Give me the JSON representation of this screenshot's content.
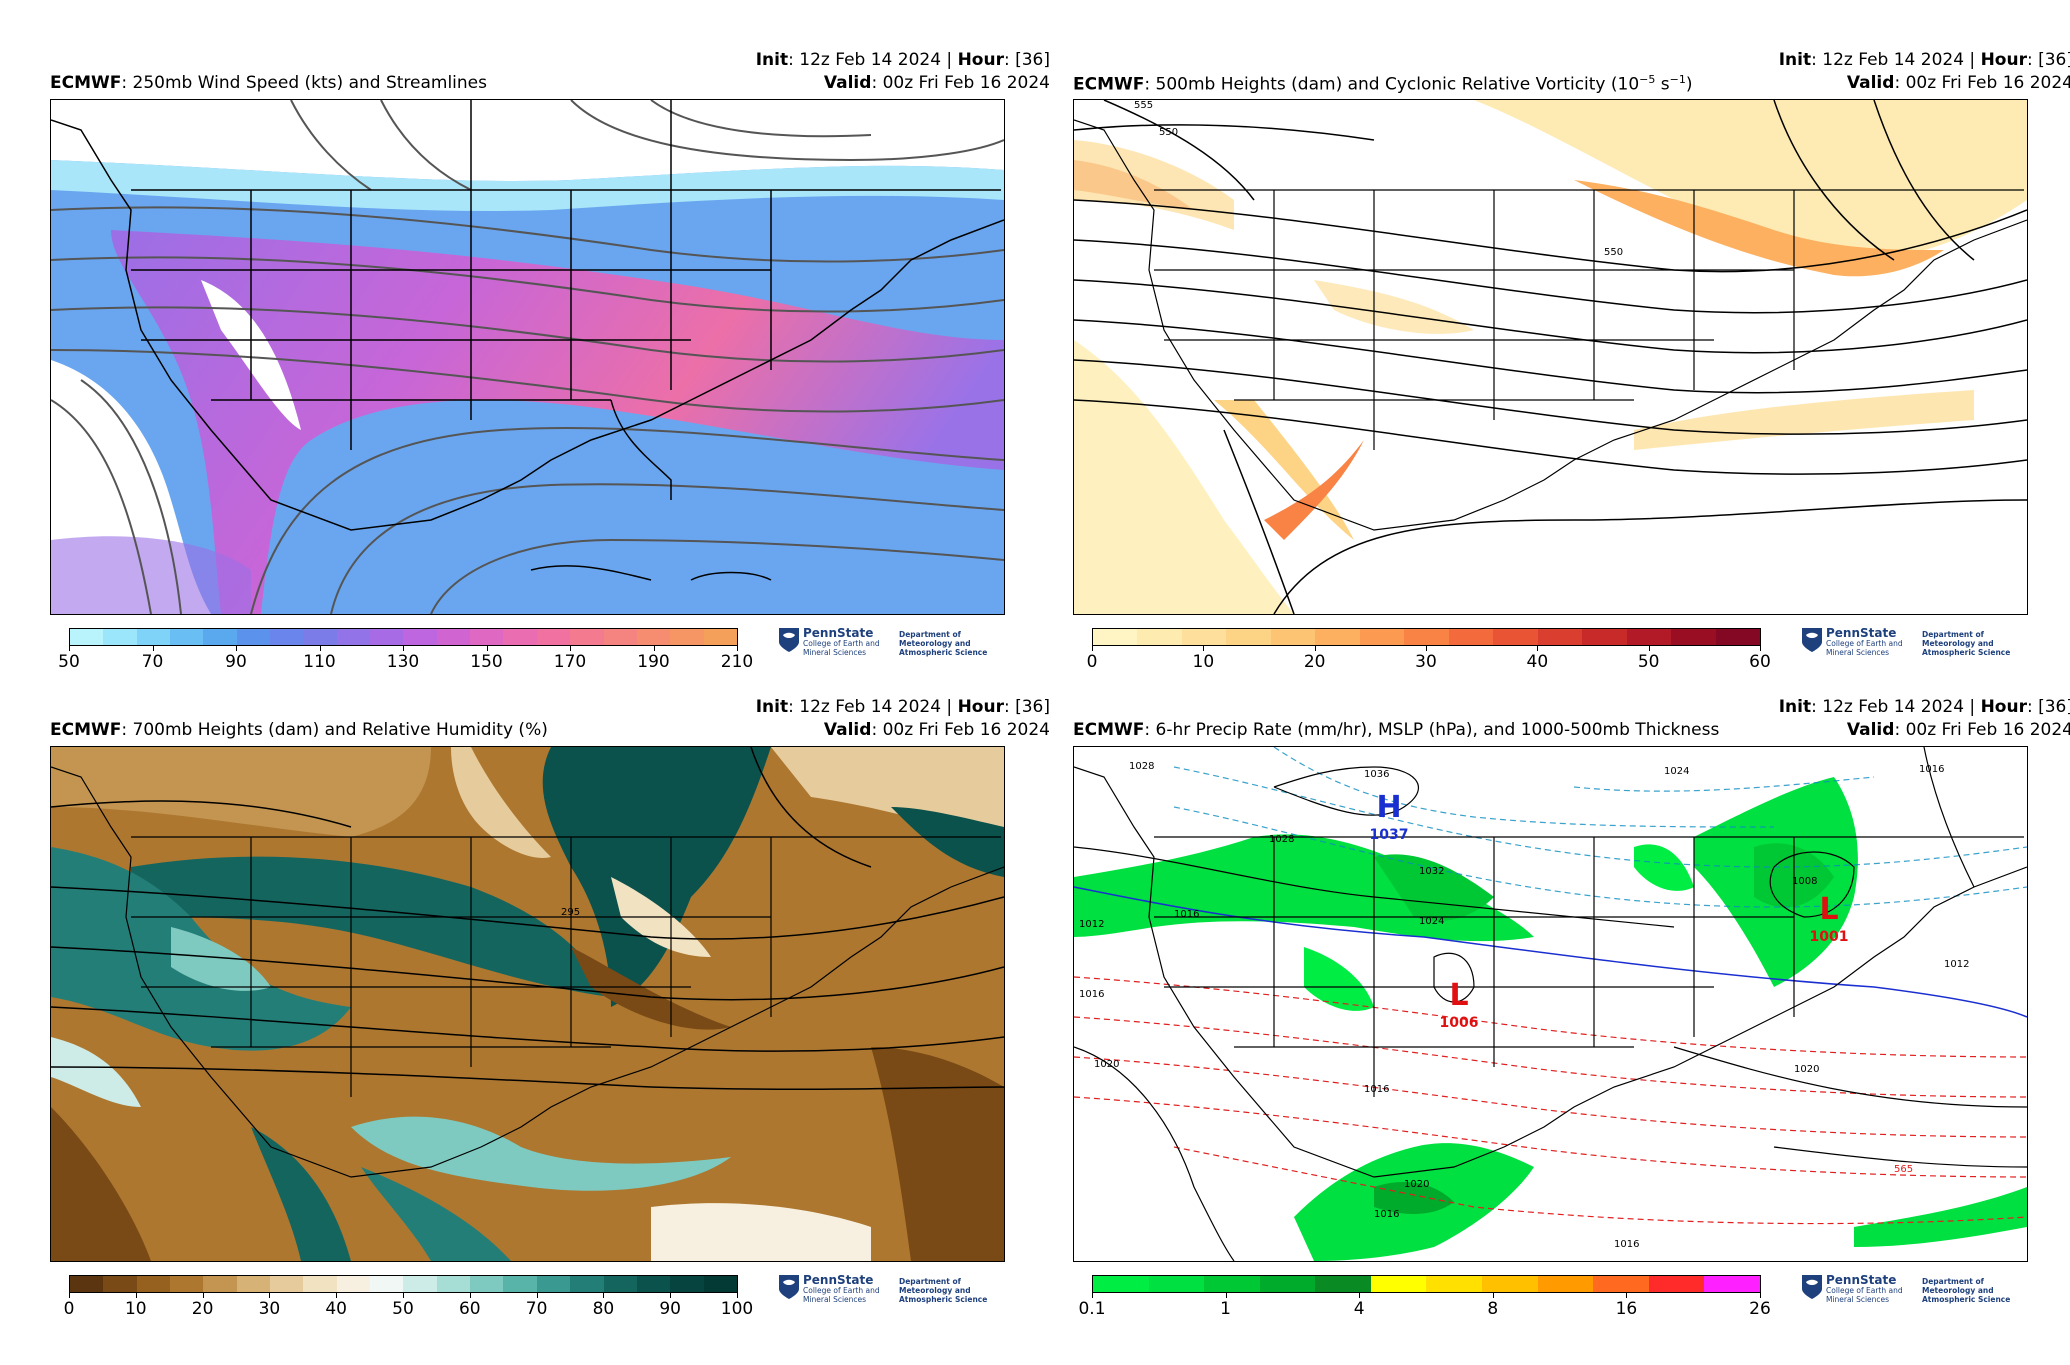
{
  "panels": [
    {
      "model": "ECMWF",
      "title_rest": ": 250mb Wind Speed (kts) and Streamlines",
      "init_label": "Init",
      "init_value": ": 12z Feb 14 2024 | ",
      "hour_label": "Hour",
      "hour_value": ": [36]",
      "valid_label": "Valid",
      "valid_value": ": 00z Fri Feb 16 2024",
      "colorbar": {
        "ticks": [
          "50",
          "70",
          "90",
          "110",
          "130",
          "150",
          "170",
          "190",
          "210"
        ],
        "colors": [
          "#b9f3fb",
          "#9be6fa",
          "#7fd3f8",
          "#69bff3",
          "#5aa8ee",
          "#5b93ec",
          "#6a86ec",
          "#7c7ce9",
          "#9273e8",
          "#a86be6",
          "#bd66e0",
          "#d065d2",
          "#df68c2",
          "#ea6cb1",
          "#f172a1",
          "#f47a90",
          "#f58380",
          "#f68c70",
          "#f69664",
          "#f5a05a"
        ]
      },
      "contour_labels": []
    },
    {
      "model": "ECMWF",
      "title_rest": ": 500mb Heights (dam) and Cyclonic Relative Vorticity (10",
      "title_sup1": "−5",
      "title_mid": " s",
      "title_sup2": "−1",
      "title_end": ")",
      "init_label": "Init",
      "init_value": ": 12z Feb 14 2024 | ",
      "hour_label": "Hour",
      "hour_value": ": [36]",
      "valid_label": "Valid",
      "valid_value": ": 00z Fri Feb 16 2024",
      "colorbar": {
        "ticks": [
          "0",
          "10",
          "20",
          "30",
          "40",
          "50",
          "60"
        ],
        "colors": [
          "#fff4c4",
          "#feebb0",
          "#fee09c",
          "#fdd486",
          "#fdc473",
          "#fcb060",
          "#fb9a50",
          "#f98245",
          "#f36b3c",
          "#e85434",
          "#da3e2e",
          "#c82a2a",
          "#b21a28",
          "#9a0e24",
          "#840823"
        ]
      },
      "contour_labels": [
        "555",
        "550",
        "550"
      ]
    },
    {
      "model": "ECMWF",
      "title_rest": ": 700mb Heights (dam) and Relative Humidity (%)",
      "init_label": "Init",
      "init_value": ": 12z Feb 14 2024 | ",
      "hour_label": "Hour",
      "hour_value": ": [36]",
      "valid_label": "Valid",
      "valid_value": ": 00z Fri Feb 16 2024",
      "colorbar": {
        "ticks": [
          "0",
          "10",
          "20",
          "30",
          "40",
          "50",
          "60",
          "70",
          "80",
          "90",
          "100"
        ],
        "colors": [
          "#5a3510",
          "#7a4a16",
          "#96601e",
          "#ad7730",
          "#c39550",
          "#d6b276",
          "#e6cc9c",
          "#f1e2c2",
          "#f7f0e0",
          "#f0f7f5",
          "#cdece7",
          "#a6ddd5",
          "#7ecac0",
          "#58b3a9",
          "#3a9990",
          "#237e77",
          "#15655f",
          "#0b514c",
          "#064440",
          "#033a36"
        ]
      },
      "contour_labels": [
        "295"
      ]
    },
    {
      "model": "ECMWF",
      "title_rest": ": 6-hr Precip Rate (mm/hr), MSLP (hPa), and 1000-500mb Thickness",
      "init_label": "Init",
      "init_value": ": 12z Feb 14 2024 | ",
      "hour_label": "Hour",
      "hour_value": ": [36]",
      "valid_label": "Valid",
      "valid_value": ": 00z Fri Feb 16 2024",
      "colorbar": {
        "ticks": [
          "0.1",
          "1",
          "4",
          "8",
          "16",
          "26"
        ],
        "colors": [
          "#00ee44",
          "#00e040",
          "#00c834",
          "#00aa2a",
          "#0a8a22",
          "#ffff00",
          "#ffe000",
          "#ffc000",
          "#ff9a00",
          "#ff6a20",
          "#ff2a2a",
          "#ff20ff"
        ]
      },
      "contour_labels": [
        "1028",
        "1036",
        "1032",
        "1028",
        "1016",
        "1012",
        "1024",
        "1016",
        "1008",
        "1016",
        "1020",
        "1020",
        "1016",
        "1016",
        "1012",
        "1020",
        "1024",
        "1016",
        "565"
      ],
      "highs_lows": [
        {
          "letter": "H",
          "value": "1037",
          "color": "#1a2fd0"
        },
        {
          "letter": "L",
          "value": "1001",
          "color": "#e01010"
        },
        {
          "letter": "L",
          "value": "1006",
          "color": "#e01010"
        }
      ]
    }
  ],
  "logo": {
    "name": "PennState",
    "college": "College of Earth and Mineral Sciences",
    "department": "Department of Meteorology and Atmospheric Science"
  }
}
